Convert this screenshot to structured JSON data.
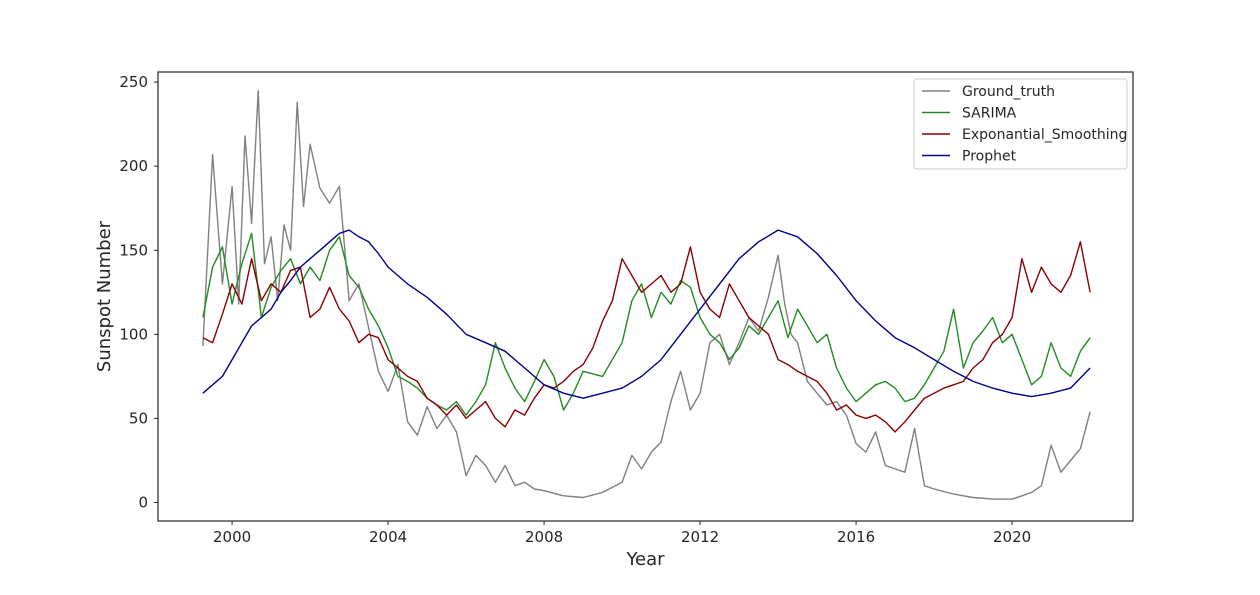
{
  "chart_data": {
    "type": "line",
    "title": "",
    "xlabel": "Year",
    "ylabel": "Sunspot Number",
    "xlim": [
      1998.1,
      2023.1
    ],
    "ylim": [
      -11,
      256
    ],
    "xticks": [
      2000,
      2004,
      2008,
      2012,
      2016,
      2020
    ],
    "xtick_labels": [
      "2000",
      "2004",
      "2008",
      "2012",
      "2016",
      "2020"
    ],
    "yticks": [
      0,
      50,
      100,
      150,
      200,
      250
    ],
    "ytick_labels": [
      "0",
      "50",
      "100",
      "150",
      "200",
      "250"
    ],
    "grid": false,
    "legend_position": "top-right",
    "series": [
      {
        "name": "Ground_truth",
        "color": "#808080",
        "x": [
          1999.25,
          1999.5,
          1999.75,
          2000.0,
          2000.17,
          2000.33,
          2000.5,
          2000.67,
          2000.83,
          2001.0,
          2001.17,
          2001.33,
          2001.5,
          2001.67,
          2001.83,
          2002.0,
          2002.25,
          2002.5,
          2002.75,
          2003.0,
          2003.25,
          2003.5,
          2003.75,
          2004.0,
          2004.25,
          2004.5,
          2004.75,
          2005.0,
          2005.25,
          2005.5,
          2005.75,
          2006.0,
          2006.25,
          2006.5,
          2006.75,
          2007.0,
          2007.25,
          2007.5,
          2007.75,
          2008.0,
          2008.5,
          2009.0,
          2009.5,
          2010.0,
          2010.25,
          2010.5,
          2010.75,
          2011.0,
          2011.25,
          2011.5,
          2011.75,
          2012.0,
          2012.25,
          2012.5,
          2012.75,
          2013.0,
          2013.25,
          2013.5,
          2013.75,
          2014.0,
          2014.17,
          2014.33,
          2014.5,
          2014.75,
          2015.0,
          2015.25,
          2015.5,
          2015.75,
          2016.0,
          2016.25,
          2016.5,
          2016.75,
          2017.0,
          2017.25,
          2017.5,
          2017.75,
          2018.0,
          2018.5,
          2019.0,
          2019.5,
          2020.0,
          2020.25,
          2020.5,
          2020.75,
          2021.0,
          2021.25,
          2021.5,
          2021.75,
          2022.0
        ],
        "values": [
          93,
          207,
          130,
          188,
          118,
          218,
          166,
          245,
          142,
          158,
          120,
          165,
          150,
          238,
          176,
          213,
          187,
          178,
          188,
          120,
          130,
          104,
          78,
          66,
          82,
          48,
          40,
          57,
          44,
          52,
          42,
          16,
          28,
          22,
          12,
          22,
          10,
          12,
          8,
          7,
          4,
          3,
          6,
          12,
          28,
          20,
          30,
          36,
          60,
          78,
          55,
          65,
          95,
          100,
          82,
          95,
          110,
          102,
          122,
          147,
          118,
          100,
          95,
          72,
          65,
          58,
          60,
          52,
          35,
          30,
          42,
          22,
          20,
          18,
          44,
          10,
          8,
          5,
          3,
          2,
          2,
          4,
          6,
          10,
          34,
          18,
          25,
          32,
          54
        ]
      },
      {
        "name": "SARIMA",
        "color": "#228b22",
        "x": [
          1999.25,
          1999.5,
          1999.75,
          2000.0,
          2000.25,
          2000.5,
          2000.75,
          2001.0,
          2001.25,
          2001.5,
          2001.75,
          2002.0,
          2002.25,
          2002.5,
          2002.75,
          2003.0,
          2003.25,
          2003.5,
          2003.75,
          2004.0,
          2004.25,
          2004.5,
          2004.75,
          2005.0,
          2005.25,
          2005.5,
          2005.75,
          2006.0,
          2006.25,
          2006.5,
          2006.75,
          2007.0,
          2007.25,
          2007.5,
          2007.75,
          2008.0,
          2008.25,
          2008.5,
          2008.75,
          2009.0,
          2009.5,
          2010.0,
          2010.25,
          2010.5,
          2010.75,
          2011.0,
          2011.25,
          2011.5,
          2011.75,
          2012.0,
          2012.25,
          2012.5,
          2012.75,
          2013.0,
          2013.25,
          2013.5,
          2013.75,
          2014.0,
          2014.25,
          2014.5,
          2014.75,
          2015.0,
          2015.25,
          2015.5,
          2015.75,
          2016.0,
          2016.25,
          2016.5,
          2016.75,
          2017.0,
          2017.25,
          2017.5,
          2017.75,
          2018.0,
          2018.25,
          2018.5,
          2018.75,
          2019.0,
          2019.25,
          2019.5,
          2019.75,
          2020.0,
          2020.25,
          2020.5,
          2020.75,
          2021.0,
          2021.25,
          2021.5,
          2021.75,
          2022.0
        ],
        "values": [
          110,
          140,
          152,
          118,
          142,
          160,
          110,
          128,
          138,
          145,
          130,
          140,
          132,
          150,
          158,
          135,
          128,
          115,
          105,
          92,
          75,
          72,
          68,
          62,
          58,
          55,
          60,
          52,
          60,
          70,
          95,
          80,
          68,
          60,
          72,
          85,
          75,
          55,
          65,
          78,
          75,
          95,
          120,
          130,
          110,
          125,
          118,
          132,
          128,
          110,
          100,
          95,
          85,
          92,
          105,
          100,
          110,
          120,
          98,
          115,
          105,
          95,
          100,
          80,
          68,
          60,
          65,
          70,
          72,
          68,
          60,
          62,
          70,
          80,
          90,
          115,
          80,
          95,
          102,
          110,
          95,
          100,
          85,
          70,
          75,
          95,
          80,
          75,
          90,
          98
        ]
      },
      {
        "name": "Exponantial_Smoothing",
        "color": "#8b0000",
        "x": [
          1999.25,
          1999.5,
          1999.75,
          2000.0,
          2000.25,
          2000.5,
          2000.75,
          2001.0,
          2001.25,
          2001.5,
          2001.75,
          2002.0,
          2002.25,
          2002.5,
          2002.75,
          2003.0,
          2003.25,
          2003.5,
          2003.75,
          2004.0,
          2004.25,
          2004.5,
          2004.75,
          2005.0,
          2005.25,
          2005.5,
          2005.75,
          2006.0,
          2006.25,
          2006.5,
          2006.75,
          2007.0,
          2007.25,
          2007.5,
          2007.75,
          2008.0,
          2008.25,
          2008.5,
          2008.75,
          2009.0,
          2009.25,
          2009.5,
          2009.75,
          2010.0,
          2010.25,
          2010.5,
          2010.75,
          2011.0,
          2011.25,
          2011.5,
          2011.75,
          2012.0,
          2012.25,
          2012.5,
          2012.75,
          2013.0,
          2013.25,
          2013.5,
          2013.75,
          2014.0,
          2014.25,
          2014.5,
          2014.75,
          2015.0,
          2015.25,
          2015.5,
          2015.75,
          2016.0,
          2016.25,
          2016.5,
          2016.75,
          2017.0,
          2017.25,
          2017.5,
          2017.75,
          2018.0,
          2018.25,
          2018.5,
          2018.75,
          2019.0,
          2019.25,
          2019.5,
          2019.75,
          2020.0,
          2020.25,
          2020.5,
          2020.75,
          2021.0,
          2021.25,
          2021.5,
          2021.75,
          2022.0
        ],
        "values": [
          98,
          95,
          112,
          130,
          118,
          145,
          120,
          130,
          125,
          138,
          140,
          110,
          115,
          128,
          115,
          108,
          95,
          100,
          98,
          85,
          80,
          75,
          72,
          62,
          58,
          52,
          58,
          50,
          55,
          60,
          50,
          45,
          55,
          52,
          62,
          70,
          68,
          72,
          78,
          82,
          92,
          108,
          120,
          145,
          135,
          125,
          130,
          135,
          125,
          130,
          152,
          125,
          115,
          110,
          130,
          120,
          110,
          105,
          100,
          85,
          82,
          78,
          75,
          72,
          65,
          55,
          58,
          52,
          50,
          52,
          48,
          42,
          48,
          55,
          62,
          65,
          68,
          70,
          72,
          80,
          85,
          95,
          100,
          110,
          145,
          125,
          140,
          130,
          125,
          135,
          155,
          125
        ]
      },
      {
        "name": "Prophet",
        "color": "#00008b",
        "x": [
          1999.25,
          1999.5,
          1999.75,
          2000.0,
          2000.25,
          2000.5,
          2000.75,
          2001.0,
          2001.25,
          2001.5,
          2001.75,
          2002.0,
          2002.25,
          2002.5,
          2002.75,
          2003.0,
          2003.25,
          2003.5,
          2003.75,
          2004.0,
          2004.5,
          2005.0,
          2005.5,
          2006.0,
          2006.5,
          2007.0,
          2007.5,
          2008.0,
          2008.5,
          2009.0,
          2009.5,
          2010.0,
          2010.5,
          2011.0,
          2011.5,
          2012.0,
          2012.5,
          2013.0,
          2013.5,
          2014.0,
          2014.5,
          2015.0,
          2015.5,
          2016.0,
          2016.5,
          2017.0,
          2017.5,
          2018.0,
          2018.5,
          2019.0,
          2019.5,
          2020.0,
          2020.5,
          2021.0,
          2021.5,
          2022.0
        ],
        "values": [
          65,
          70,
          75,
          85,
          95,
          105,
          110,
          115,
          125,
          132,
          140,
          145,
          150,
          155,
          160,
          162,
          158,
          155,
          148,
          140,
          130,
          122,
          112,
          100,
          95,
          90,
          80,
          70,
          65,
          62,
          65,
          68,
          75,
          85,
          100,
          115,
          130,
          145,
          155,
          162,
          158,
          148,
          135,
          120,
          108,
          98,
          92,
          85,
          78,
          72,
          68,
          65,
          63,
          65,
          68,
          80
        ]
      }
    ]
  }
}
